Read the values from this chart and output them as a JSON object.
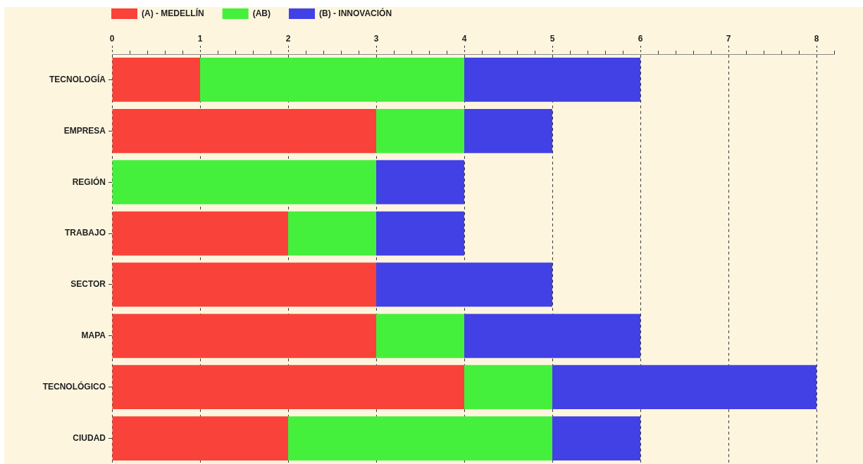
{
  "chart_data": {
    "type": "bar",
    "orientation": "horizontal",
    "stacked": true,
    "categories": [
      "TECNOLOGÍA",
      "EMPRESA",
      "REGIÓN",
      "TRABAJO",
      "SECTOR",
      "MAPA",
      "TECNOLÓGICO",
      "CIUDAD"
    ],
    "series": [
      {
        "name": "(A) - MEDELLÍN",
        "color": "#f94239",
        "values": [
          1,
          3,
          0,
          2,
          3,
          3,
          4,
          2
        ]
      },
      {
        "name": "(AB)",
        "color": "#44f03c",
        "values": [
          3,
          1,
          3,
          1,
          0,
          1,
          1,
          3
        ]
      },
      {
        "name": "(B) - INNOVACIÓN",
        "color": "#4141e6",
        "values": [
          2,
          1,
          1,
          1,
          2,
          2,
          3,
          1
        ]
      }
    ],
    "xlim": [
      0,
      8.2
    ],
    "xticks": [
      0,
      {
        "value": 0.2,
        "label": null
      },
      {
        "value": 0.4,
        "label": null
      },
      {
        "value": 0.6,
        "label": null
      },
      {
        "value": 0.8,
        "label": null
      },
      1,
      {
        "value": 1.2,
        "label": null
      },
      {
        "value": 1.4,
        "label": null
      },
      {
        "value": 1.6,
        "label": null
      },
      {
        "value": 1.8,
        "label": null
      },
      2,
      {
        "value": 2.2,
        "label": null
      },
      {
        "value": 2.4,
        "label": null
      },
      {
        "value": 2.6,
        "label": null
      },
      {
        "value": 2.8,
        "label": null
      },
      3,
      {
        "value": 3.2,
        "label": null
      },
      {
        "value": 3.4,
        "label": null
      },
      {
        "value": 3.6,
        "label": null
      },
      {
        "value": 3.8,
        "label": null
      },
      4,
      {
        "value": 4.2,
        "label": null
      },
      {
        "value": 4.4,
        "label": null
      },
      {
        "value": 4.6,
        "label": null
      },
      {
        "value": 4.8,
        "label": null
      },
      5,
      {
        "value": 5.2,
        "label": null
      },
      {
        "value": 5.4,
        "label": null
      },
      {
        "value": 5.6,
        "label": null
      },
      {
        "value": 5.8,
        "label": null
      },
      6,
      {
        "value": 6.2,
        "label": null
      },
      {
        "value": 6.4,
        "label": null
      },
      {
        "value": 6.6,
        "label": null
      },
      {
        "value": 6.8,
        "label": null
      },
      7,
      {
        "value": 7.2,
        "label": null
      },
      {
        "value": 7.4,
        "label": null
      },
      {
        "value": 7.6,
        "label": null
      },
      {
        "value": 7.8,
        "label": null
      },
      8,
      {
        "value": 8.2,
        "label": null
      }
    ],
    "grid": "x",
    "legend": "top left"
  }
}
